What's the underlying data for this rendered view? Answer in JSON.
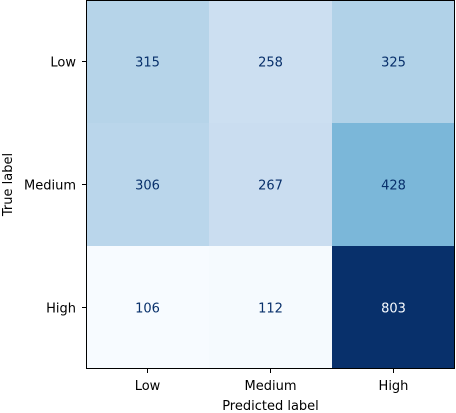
{
  "chart_data": {
    "type": "heatmap",
    "title": "",
    "xlabel": "Predicted label",
    "ylabel": "True label",
    "x_categories": [
      "Low",
      "Medium",
      "High"
    ],
    "y_categories": [
      "Low",
      "Medium",
      "High"
    ],
    "matrix": [
      [
        315,
        258,
        325
      ],
      [
        306,
        267,
        428
      ],
      [
        106,
        112,
        803
      ]
    ],
    "colormap": "Blues",
    "grid": false,
    "legend": "none"
  }
}
